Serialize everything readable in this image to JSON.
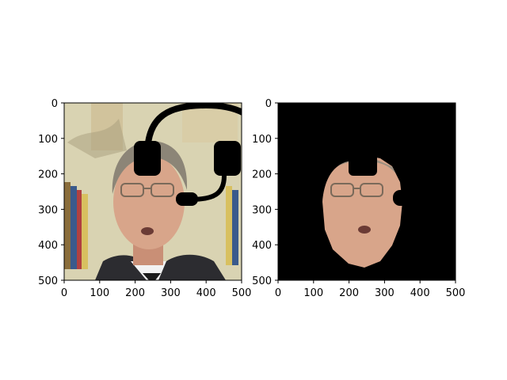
{
  "panels": [
    {
      "name": "left",
      "image": "photo of an older man in glasses with a drawn black headset overlay",
      "x_ticks": [
        "0",
        "100",
        "200",
        "300",
        "400",
        "500"
      ],
      "y_ticks": [
        "0",
        "100",
        "200",
        "300",
        "400",
        "500"
      ]
    },
    {
      "name": "right",
      "image": "segmented face on black background",
      "x_ticks": [
        "0",
        "100",
        "200",
        "300",
        "400",
        "500"
      ],
      "y_ticks": [
        "0",
        "100",
        "200",
        "300",
        "400",
        "500"
      ]
    }
  ],
  "colors": {
    "background_left": "#d9d3b2",
    "mask_background": "#000000",
    "skin": "#d8a58a",
    "suit": "#2c2c30",
    "headset": "#000000"
  }
}
